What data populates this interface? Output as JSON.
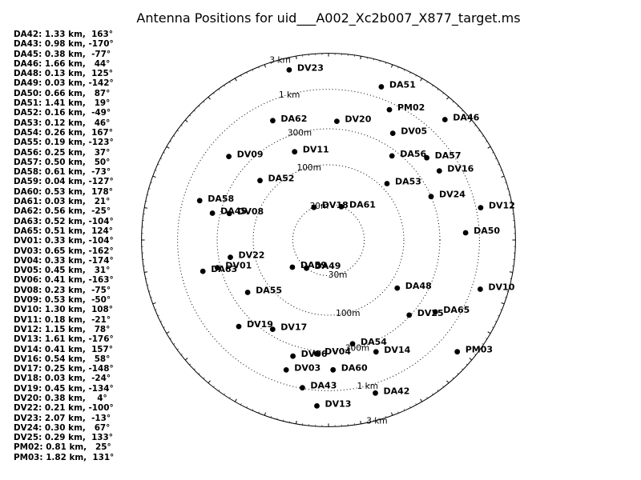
{
  "title": "Antenna Positions for uid___A002_Xc2b007_X877_target.ms",
  "legend": [
    "DA42: 1.33 km,  163°",
    "DA43: 0.98 km, -170°",
    "DA45: 0.38 km,  -77°",
    "DA46: 1.66 km,   44°",
    "DA48: 0.13 km,  125°",
    "DA49: 0.03 km, -142°",
    "DA50: 0.66 km,   87°",
    "DA51: 1.41 km,   19°",
    "DA52: 0.16 km,  -49°",
    "DA53: 0.12 km,   46°",
    "DA54: 0.26 km,  167°",
    "DA55: 0.19 km, -123°",
    "DA56: 0.25 km,   37°",
    "DA57: 0.50 km,   50°",
    "DA58: 0.61 km,  -73°",
    "DA59: 0.04 km, -127°",
    "DA60: 0.53 km,  178°",
    "DA61: 0.03 km,   21°",
    "DA62: 0.56 km,  -25°",
    "DA63: 0.52 km, -104°",
    "DA65: 0.51 km,  124°",
    "DV01: 0.33 km, -104°",
    "DV03: 0.65 km, -162°",
    "DV04: 0.33 km, -174°",
    "DV05: 0.45 km,   31°",
    "DV06: 0.41 km, -163°",
    "DV08: 0.23 km,  -75°",
    "DV09: 0.53 km,  -50°",
    "DV10: 1.30 km,  108°",
    "DV11: 0.18 km,  -21°",
    "DV12: 1.15 km,   78°",
    "DV13: 1.61 km, -176°",
    "DV14: 0.41 km,  157°",
    "DV16: 0.54 km,   58°",
    "DV17: 0.25 km, -148°",
    "DV18: 0.03 km,  -24°",
    "DV19: 0.45 km, -134°",
    "DV20: 0.38 km,    4°",
    "DV22: 0.21 km, -100°",
    "DV23: 2.07 km,  -13°",
    "DV24: 0.30 km,   67°",
    "DV25: 0.29 km,  133°",
    "PM02: 0.81 km,   25°",
    "PM03: 1.82 km,  131°"
  ],
  "chart_data": {
    "type": "scatter",
    "projection": "polar, log radius",
    "title": "Antenna Positions for uid___A002_Xc2b007_X877_target.ms",
    "radius_unit": "km",
    "rings": [
      {
        "radius_km": 0.03,
        "label": "30m",
        "style": "dotted"
      },
      {
        "radius_km": 0.1,
        "label": "100m",
        "style": "dotted"
      },
      {
        "radius_km": 0.3,
        "label": "300m",
        "style": "dotted"
      },
      {
        "radius_km": 1,
        "label": "1 km",
        "style": "dotted"
      },
      {
        "radius_km": 3,
        "label": "3 km",
        "style": "solid"
      }
    ],
    "antennas": [
      {
        "name": "DA42",
        "radius_km": 1.33,
        "angle_deg": 163
      },
      {
        "name": "DA43",
        "radius_km": 0.98,
        "angle_deg": -170
      },
      {
        "name": "DA45",
        "radius_km": 0.38,
        "angle_deg": -77
      },
      {
        "name": "DA46",
        "radius_km": 1.66,
        "angle_deg": 44
      },
      {
        "name": "DA48",
        "radius_km": 0.13,
        "angle_deg": 125
      },
      {
        "name": "DA49",
        "radius_km": 0.03,
        "angle_deg": -142
      },
      {
        "name": "DA50",
        "radius_km": 0.66,
        "angle_deg": 87
      },
      {
        "name": "DA51",
        "radius_km": 1.41,
        "angle_deg": 19
      },
      {
        "name": "DA52",
        "radius_km": 0.16,
        "angle_deg": -49
      },
      {
        "name": "DA53",
        "radius_km": 0.12,
        "angle_deg": 46
      },
      {
        "name": "DA54",
        "radius_km": 0.26,
        "angle_deg": 167
      },
      {
        "name": "DA55",
        "radius_km": 0.19,
        "angle_deg": -123
      },
      {
        "name": "DA56",
        "radius_km": 0.25,
        "angle_deg": 37
      },
      {
        "name": "DA57",
        "radius_km": 0.5,
        "angle_deg": 50
      },
      {
        "name": "DA58",
        "radius_km": 0.61,
        "angle_deg": -73
      },
      {
        "name": "DA59",
        "radius_km": 0.04,
        "angle_deg": -127
      },
      {
        "name": "DA60",
        "radius_km": 0.53,
        "angle_deg": 178
      },
      {
        "name": "DA61",
        "radius_km": 0.03,
        "angle_deg": 21
      },
      {
        "name": "DA62",
        "radius_km": 0.56,
        "angle_deg": -25
      },
      {
        "name": "DA63",
        "radius_km": 0.52,
        "angle_deg": -104
      },
      {
        "name": "DA65",
        "radius_km": 0.51,
        "angle_deg": 124
      },
      {
        "name": "DV01",
        "radius_km": 0.33,
        "angle_deg": -104
      },
      {
        "name": "DV03",
        "radius_km": 0.65,
        "angle_deg": -162
      },
      {
        "name": "DV04",
        "radius_km": 0.33,
        "angle_deg": -174
      },
      {
        "name": "DV05",
        "radius_km": 0.45,
        "angle_deg": 31
      },
      {
        "name": "DV06",
        "radius_km": 0.41,
        "angle_deg": -163
      },
      {
        "name": "DV08",
        "radius_km": 0.23,
        "angle_deg": -75
      },
      {
        "name": "DV09",
        "radius_km": 0.53,
        "angle_deg": -50
      },
      {
        "name": "DV10",
        "radius_km": 1.3,
        "angle_deg": 108
      },
      {
        "name": "DV11",
        "radius_km": 0.18,
        "angle_deg": -21
      },
      {
        "name": "DV12",
        "radius_km": 1.15,
        "angle_deg": 78
      },
      {
        "name": "DV13",
        "radius_km": 1.61,
        "angle_deg": -176
      },
      {
        "name": "DV14",
        "radius_km": 0.41,
        "angle_deg": 157
      },
      {
        "name": "DV16",
        "radius_km": 0.54,
        "angle_deg": 58
      },
      {
        "name": "DV17",
        "radius_km": 0.25,
        "angle_deg": -148
      },
      {
        "name": "DV18",
        "radius_km": 0.03,
        "angle_deg": -24
      },
      {
        "name": "DV19",
        "radius_km": 0.45,
        "angle_deg": -134
      },
      {
        "name": "DV20",
        "radius_km": 0.38,
        "angle_deg": 4
      },
      {
        "name": "DV22",
        "radius_km": 0.21,
        "angle_deg": -100
      },
      {
        "name": "DV23",
        "radius_km": 2.07,
        "angle_deg": -13
      },
      {
        "name": "DV24",
        "radius_km": 0.3,
        "angle_deg": 67
      },
      {
        "name": "DV25",
        "radius_km": 0.29,
        "angle_deg": 133
      },
      {
        "name": "PM02",
        "radius_km": 0.81,
        "angle_deg": 25
      },
      {
        "name": "PM03",
        "radius_km": 1.82,
        "angle_deg": 131
      }
    ]
  }
}
